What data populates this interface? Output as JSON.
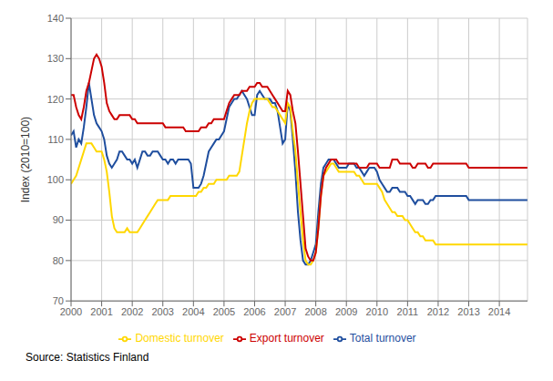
{
  "chart_data": {
    "type": "line",
    "ylabel": "Index (2010=100)",
    "source": "Source: Statistics Finland",
    "xlim": [
      2000.0,
      2014.92
    ],
    "xticks": [
      2000,
      2001,
      2002,
      2003,
      2004,
      2005,
      2006,
      2007,
      2008,
      2009,
      2010,
      2011,
      2012,
      2013,
      2014
    ],
    "ylim": [
      70,
      140
    ],
    "yticks": [
      70,
      80,
      90,
      100,
      110,
      120,
      130,
      140
    ],
    "grid": true,
    "legend": "bottom",
    "x": [
      2000,
      2000.0833,
      2000.1667,
      2000.25,
      2000.3333,
      2000.4167,
      2000.5,
      2000.5833,
      2000.6667,
      2000.75,
      2000.8333,
      2000.9167,
      2001,
      2001.0833,
      2001.1667,
      2001.25,
      2001.3333,
      2001.4167,
      2001.5,
      2001.5833,
      2001.6667,
      2001.75,
      2001.8333,
      2001.9167,
      2002,
      2002.0833,
      2002.1667,
      2002.25,
      2002.3333,
      2002.4167,
      2002.5,
      2002.5833,
      2002.6667,
      2002.75,
      2002.8333,
      2002.9167,
      2003,
      2003.0833,
      2003.1667,
      2003.25,
      2003.3333,
      2003.4167,
      2003.5,
      2003.5833,
      2003.6667,
      2003.75,
      2003.8333,
      2003.9167,
      2004,
      2004.0833,
      2004.1667,
      2004.25,
      2004.3333,
      2004.4167,
      2004.5,
      2004.5833,
      2004.6667,
      2004.75,
      2004.8333,
      2004.9167,
      2005,
      2005.0833,
      2005.1667,
      2005.25,
      2005.3333,
      2005.4167,
      2005.5,
      2005.5833,
      2005.6667,
      2005.75,
      2005.8333,
      2005.9167,
      2006,
      2006.0833,
      2006.1667,
      2006.25,
      2006.3333,
      2006.4167,
      2006.5,
      2006.5833,
      2006.6667,
      2006.75,
      2006.8333,
      2006.9167,
      2007,
      2007.0833,
      2007.1667,
      2007.25,
      2007.3333,
      2007.4167,
      2007.5,
      2007.5833,
      2007.6667,
      2007.75,
      2007.8333,
      2007.9167,
      2008,
      2008.0833,
      2008.1667,
      2008.25,
      2008.3333,
      2008.4167,
      2008.5,
      2008.5833,
      2008.6667,
      2008.75,
      2008.8333,
      2008.9167,
      2009,
      2009.0833,
      2009.1667,
      2009.25,
      2009.3333,
      2009.4167,
      2009.5,
      2009.5833,
      2009.6667,
      2009.75,
      2009.8333,
      2009.9167,
      2010,
      2010.0833,
      2010.1667,
      2010.25,
      2010.3333,
      2010.4167,
      2010.5,
      2010.5833,
      2010.6667,
      2010.75,
      2010.8333,
      2010.9167,
      2011,
      2011.0833,
      2011.1667,
      2011.25,
      2011.3333,
      2011.4167,
      2011.5,
      2011.5833,
      2011.6667,
      2011.75,
      2011.8333,
      2011.9167,
      2012,
      2012.0833,
      2012.1667,
      2012.25,
      2012.3333,
      2012.4167,
      2012.5,
      2012.5833,
      2012.6667,
      2012.75,
      2012.8333,
      2012.9167,
      2013,
      2013.0833,
      2013.1667,
      2013.25,
      2013.3333,
      2013.4167,
      2013.5,
      2013.5833,
      2013.6667,
      2013.75,
      2013.8333,
      2013.9167,
      2014,
      2014.0833,
      2014.1667,
      2014.25,
      2014.3333,
      2014.4167,
      2014.5,
      2014.5833,
      2014.6667,
      2014.75,
      2014.8333,
      2014.9167
    ],
    "series": [
      {
        "name": "Total turnover",
        "color": "#1f4e9e",
        "values": [
          111,
          112,
          108,
          110,
          109,
          113,
          118,
          124,
          120,
          116,
          114,
          113,
          112,
          110,
          106,
          104,
          103,
          104,
          105,
          107,
          107,
          106,
          105,
          105,
          104,
          105,
          103,
          105,
          107,
          107,
          106,
          106,
          107,
          107,
          107,
          106,
          105,
          105,
          104,
          105,
          105,
          104,
          105,
          105,
          105,
          105,
          105,
          104,
          98,
          98,
          98,
          99,
          101,
          104,
          107,
          108,
          109,
          110,
          110,
          111,
          112,
          115,
          118,
          119,
          120,
          120,
          121,
          122,
          121,
          120,
          118,
          116,
          116,
          121,
          122,
          121,
          120,
          120,
          120,
          119,
          119,
          117,
          113,
          109,
          110,
          119,
          117,
          110,
          102,
          92,
          85,
          80,
          79,
          79,
          80,
          82,
          84,
          92,
          99,
          103,
          104,
          105,
          105,
          105,
          104,
          103,
          103,
          103,
          103,
          104,
          104,
          104,
          103,
          103,
          102,
          101,
          102,
          103,
          103,
          103,
          102,
          100,
          99,
          98,
          97,
          97,
          98,
          98,
          98,
          97,
          97,
          97,
          96,
          96,
          95,
          94,
          95,
          95,
          95,
          94,
          94,
          95,
          95,
          96,
          96,
          96,
          96,
          96,
          96,
          96,
          96,
          96,
          96,
          96,
          96,
          96,
          95,
          95,
          95,
          95,
          95,
          95,
          95,
          95,
          95,
          95,
          95,
          95,
          95,
          95,
          95,
          95,
          95,
          95,
          95,
          95,
          95,
          95,
          95,
          95
        ]
      },
      {
        "name": "Domestic turnover",
        "color": "#ffd700",
        "values": [
          99,
          100,
          101,
          103,
          105,
          107,
          109,
          109,
          109,
          108,
          107,
          107,
          107,
          105,
          102,
          97,
          91,
          88,
          87,
          87,
          87,
          87,
          88,
          87,
          87,
          87,
          87,
          88,
          89,
          90,
          91,
          92,
          93,
          94,
          95,
          95,
          95,
          95,
          95,
          96,
          96,
          96,
          96,
          96,
          96,
          96,
          96,
          96,
          96,
          96,
          97,
          97,
          98,
          98,
          99,
          99,
          99,
          100,
          100,
          100,
          100,
          100,
          101,
          101,
          101,
          101,
          102,
          106,
          110,
          114,
          117,
          119,
          120,
          120,
          120,
          120,
          120,
          120,
          119,
          118,
          118,
          117,
          116,
          115,
          114,
          119,
          118,
          112,
          107,
          99,
          92,
          85,
          80,
          79,
          79,
          80,
          82,
          88,
          96,
          101,
          102,
          103,
          104,
          104,
          103,
          102,
          102,
          102,
          102,
          102,
          102,
          102,
          101,
          101,
          100,
          99,
          99,
          99,
          99,
          99,
          99,
          98,
          97,
          95,
          94,
          93,
          92,
          92,
          91,
          91,
          91,
          90,
          90,
          89,
          88,
          87,
          87,
          86,
          86,
          85,
          85,
          85,
          85,
          84,
          84,
          84,
          84,
          84,
          84,
          84,
          84,
          84,
          84,
          84,
          84,
          84,
          84,
          84,
          84,
          84,
          84,
          84,
          84,
          84,
          84,
          84,
          84,
          84,
          84,
          84,
          84,
          84,
          84,
          84,
          84,
          84,
          84,
          84,
          84,
          84
        ]
      },
      {
        "name": "Export turnover",
        "color": "#cc0000",
        "values": [
          121,
          121,
          118,
          116,
          115,
          118,
          122,
          124,
          127,
          130,
          131,
          130,
          128,
          124,
          119,
          117,
          116,
          115,
          115,
          116,
          116,
          116,
          116,
          116,
          115,
          115,
          114,
          114,
          114,
          114,
          114,
          114,
          114,
          114,
          114,
          114,
          114,
          113,
          113,
          113,
          113,
          113,
          113,
          113,
          113,
          112,
          112,
          112,
          112,
          112,
          112,
          113,
          113,
          113,
          114,
          114,
          115,
          115,
          115,
          115,
          115,
          117,
          119,
          120,
          121,
          121,
          121,
          122,
          122,
          122,
          123,
          123,
          123,
          124,
          124,
          123,
          123,
          123,
          122,
          121,
          120,
          119,
          118,
          117,
          117,
          122,
          121,
          117,
          114,
          107,
          99,
          91,
          83,
          81,
          80,
          80,
          82,
          88,
          96,
          101,
          103,
          104,
          105,
          105,
          105,
          104,
          104,
          104,
          104,
          104,
          104,
          104,
          104,
          103,
          103,
          103,
          103,
          104,
          104,
          104,
          104,
          103,
          103,
          103,
          103,
          103,
          105,
          105,
          105,
          104,
          104,
          104,
          104,
          104,
          103,
          103,
          104,
          104,
          104,
          104,
          103,
          103,
          104,
          104,
          104,
          104,
          104,
          104,
          104,
          104,
          104,
          104,
          104,
          104,
          104,
          104,
          103,
          103,
          103,
          103,
          103,
          103,
          103,
          103,
          103,
          103,
          103,
          103,
          103,
          103,
          103,
          103,
          103,
          103,
          103,
          103,
          103,
          103,
          103,
          103
        ]
      }
    ]
  }
}
